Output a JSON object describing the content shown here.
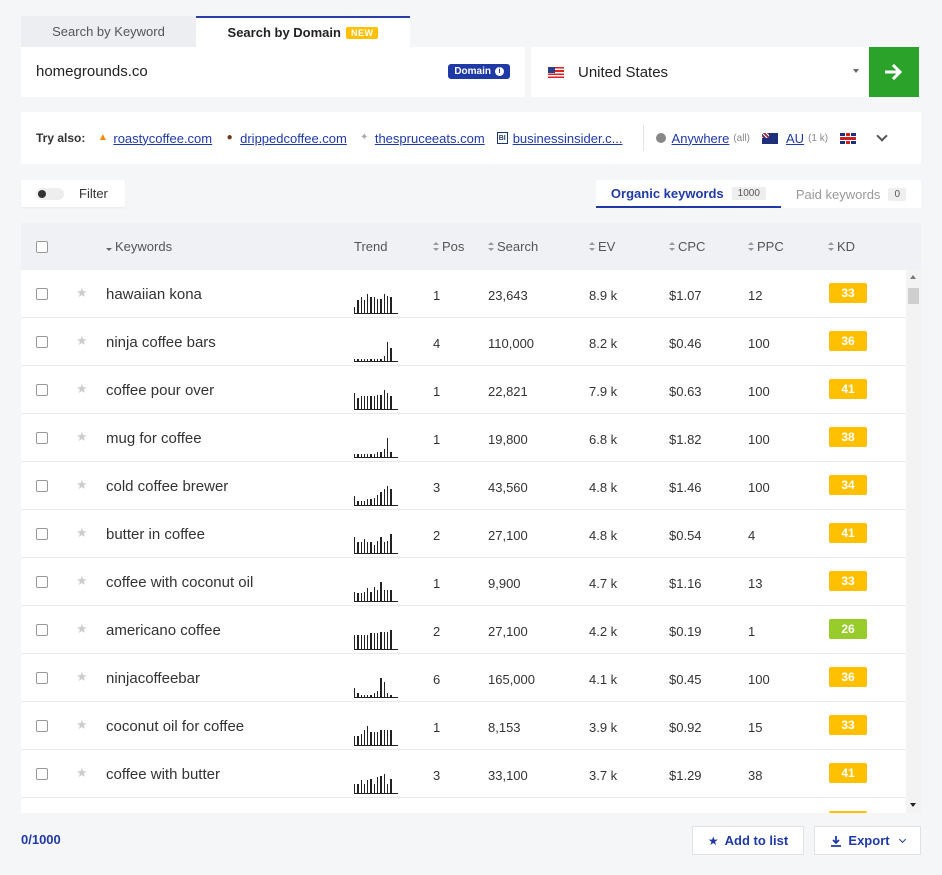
{
  "tabs": {
    "keyword": "Search by Keyword",
    "domain": "Search by Domain",
    "new_badge": "NEW"
  },
  "search": {
    "domain_value": "homegrounds.co",
    "domain_badge": "Domain",
    "country": "United States"
  },
  "try_also": {
    "label": "Try also:",
    "domains": [
      "roastycoffee.com",
      "drippedcoffee.com",
      "thespruceeats.com",
      "businessinsider.c..."
    ],
    "location": {
      "label": "Anywhere",
      "note": "(all)"
    },
    "country_option": {
      "label": "AU",
      "note": "(1 k)"
    }
  },
  "filter": {
    "label": "Filter"
  },
  "kw_tabs": {
    "organic_label": "Organic keywords",
    "organic_count": "1000",
    "paid_label": "Paid keywords",
    "paid_count": "0"
  },
  "columns": {
    "keywords": "Keywords",
    "trend": "Trend",
    "pos": "Pos",
    "search": "Search",
    "ev": "EV",
    "cpc": "CPC",
    "ppc": "PPC",
    "kd": "KD"
  },
  "colors": {
    "kd_medium": "#ffc000",
    "kd_easy": "#97cc2a",
    "accent": "#1f3aa7",
    "go_button": "#2ba32b"
  },
  "rows": [
    {
      "keyword": "hawaiian kona",
      "trend": [
        4,
        8,
        10,
        8,
        12,
        10,
        10,
        9,
        9,
        12,
        11,
        10
      ],
      "pos": "1",
      "search": "23,643",
      "ev": "8.9 k",
      "cpc": "$1.07",
      "ppc": "12",
      "kd": "33"
    },
    {
      "keyword": "ninja coffee bars",
      "trend": [
        1,
        1,
        1,
        1,
        1,
        1,
        1,
        1,
        1,
        3,
        12,
        8
      ],
      "pos": "4",
      "search": "110,000",
      "ev": "8.2 k",
      "cpc": "$0.46",
      "ppc": "100",
      "kd": "36"
    },
    {
      "keyword": "coffee pour over",
      "trend": [
        10,
        7,
        8,
        8,
        8,
        8,
        8,
        9,
        9,
        12,
        10,
        8
      ],
      "pos": "1",
      "search": "22,821",
      "ev": "7.9 k",
      "cpc": "$0.63",
      "ppc": "100",
      "kd": "41"
    },
    {
      "keyword": "mug for coffee",
      "trend": [
        2,
        2,
        2,
        2,
        2,
        2,
        2,
        3,
        3,
        5,
        12,
        3
      ],
      "pos": "1",
      "search": "19,800",
      "ev": "6.8 k",
      "cpc": "$1.82",
      "ppc": "100",
      "kd": "38"
    },
    {
      "keyword": "cold coffee brewer",
      "trend": [
        6,
        3,
        3,
        3,
        4,
        4,
        5,
        7,
        9,
        11,
        13,
        11
      ],
      "pos": "3",
      "search": "43,560",
      "ev": "4.8 k",
      "cpc": "$1.46",
      "ppc": "100",
      "kd": "34"
    },
    {
      "keyword": "butter in coffee",
      "trend": [
        12,
        8,
        8,
        10,
        8,
        8,
        6,
        9,
        12,
        8,
        9,
        14
      ],
      "pos": "2",
      "search": "27,100",
      "ev": "4.8 k",
      "cpc": "$0.54",
      "ppc": "4",
      "kd": "41"
    },
    {
      "keyword": "coffee with coconut oil",
      "trend": [
        6,
        5,
        5,
        6,
        8,
        6,
        9,
        7,
        12,
        7,
        7,
        7
      ],
      "pos": "1",
      "search": "9,900",
      "ev": "4.7 k",
      "cpc": "$1.16",
      "ppc": "13",
      "kd": "33"
    },
    {
      "keyword": "americano coffee",
      "trend": [
        8,
        8,
        8,
        8,
        8,
        9,
        9,
        9,
        10,
        10,
        10,
        11
      ],
      "pos": "2",
      "search": "27,100",
      "ev": "4.2 k",
      "cpc": "$0.19",
      "ppc": "1",
      "kd": "26"
    },
    {
      "keyword": "ninjacoffeebar",
      "trend": [
        5,
        2,
        1,
        1,
        1,
        1,
        2,
        3,
        10,
        8,
        2,
        1
      ],
      "pos": "6",
      "search": "165,000",
      "ev": "4.1 k",
      "cpc": "$0.45",
      "ppc": "100",
      "kd": "36"
    },
    {
      "keyword": "coconut oil for coffee",
      "trend": [
        5,
        5,
        6,
        8,
        10,
        7,
        7,
        7,
        8,
        8,
        8,
        8
      ],
      "pos": "1",
      "search": "8,153",
      "ev": "3.9 k",
      "cpc": "$0.92",
      "ppc": "15",
      "kd": "33"
    },
    {
      "keyword": "coffee with butter",
      "trend": [
        6,
        6,
        8,
        6,
        8,
        9,
        6,
        10,
        11,
        12,
        6,
        9
      ],
      "pos": "3",
      "search": "33,100",
      "ev": "3.7 k",
      "cpc": "$1.29",
      "ppc": "38",
      "kd": "41"
    }
  ],
  "footer": {
    "selected": "0",
    "total": "/1000",
    "add_to_list": "Add to list",
    "export": "Export"
  }
}
